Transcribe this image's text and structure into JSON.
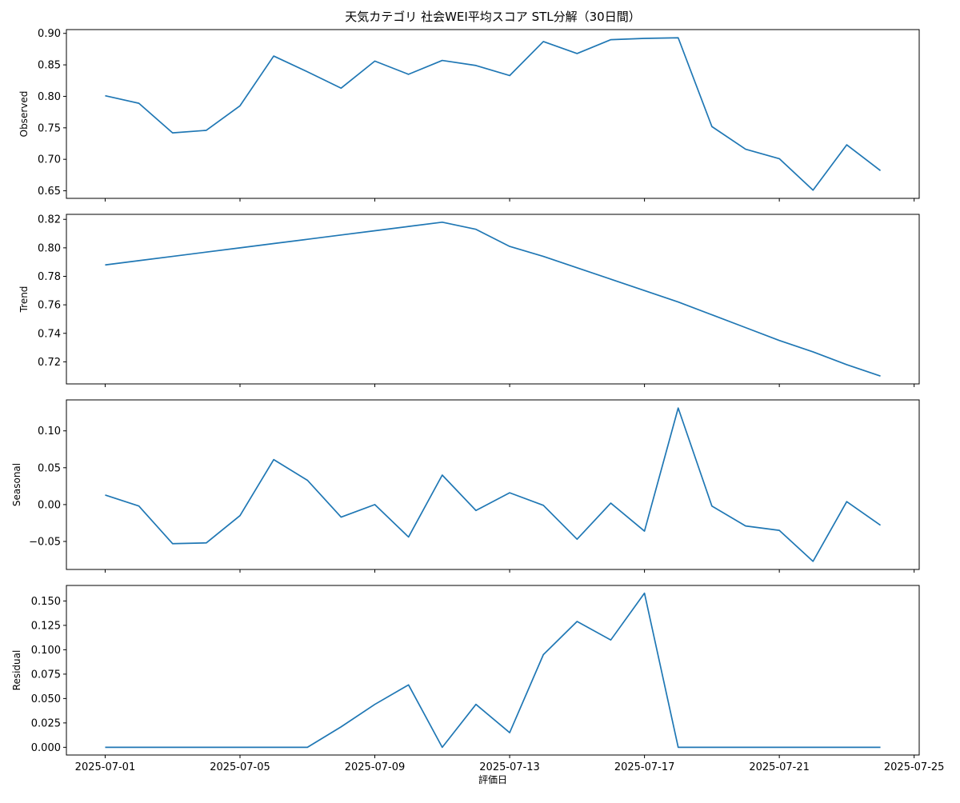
{
  "chart_data": {
    "type": "line",
    "title": "天気カテゴリ 社会WEI平均スコア STL分解（30日間）",
    "xlabel": "評価日",
    "x_tick_labels": [
      "2025-07-01",
      "2025-07-05",
      "2025-07-09",
      "2025-07-13",
      "2025-07-17",
      "2025-07-21",
      "2025-07-25"
    ],
    "x": [
      "2025-07-01",
      "2025-07-02",
      "2025-07-03",
      "2025-07-04",
      "2025-07-05",
      "2025-07-06",
      "2025-07-07",
      "2025-07-08",
      "2025-07-09",
      "2025-07-10",
      "2025-07-11",
      "2025-07-12",
      "2025-07-13",
      "2025-07-14",
      "2025-07-15",
      "2025-07-16",
      "2025-07-17",
      "2025-07-18",
      "2025-07-19",
      "2025-07-20",
      "2025-07-21",
      "2025-07-22",
      "2025-07-23",
      "2025-07-24"
    ],
    "series_color": "#1f77b4",
    "grid": false,
    "panels": [
      {
        "ylabel": "Observed",
        "y_tick_labels": [
          "0.65",
          "0.70",
          "0.75",
          "0.80",
          "0.85",
          "0.90"
        ],
        "values": [
          0.801,
          0.789,
          0.742,
          0.746,
          0.785,
          0.864,
          0.839,
          0.813,
          0.856,
          0.835,
          0.857,
          0.849,
          0.833,
          0.887,
          0.868,
          0.89,
          0.892,
          0.893,
          0.752,
          0.716,
          0.701,
          0.651,
          0.723,
          0.682
        ]
      },
      {
        "ylabel": "Trend",
        "y_tick_labels": [
          "0.72",
          "0.74",
          "0.76",
          "0.78",
          "0.80",
          "0.82"
        ],
        "values": [
          0.788,
          0.791,
          0.794,
          0.797,
          0.8,
          0.803,
          0.806,
          0.809,
          0.812,
          0.815,
          0.818,
          0.813,
          0.801,
          0.794,
          0.786,
          0.778,
          0.77,
          0.762,
          0.753,
          0.744,
          0.735,
          0.727,
          0.718,
          0.71
        ]
      },
      {
        "ylabel": "Seasonal",
        "y_tick_labels": [
          "−0.05",
          "0.00",
          "0.05",
          "0.10"
        ],
        "values": [
          0.013,
          -0.002,
          -0.053,
          -0.052,
          -0.015,
          0.061,
          0.033,
          -0.017,
          0.0,
          -0.044,
          0.04,
          -0.008,
          0.016,
          -0.001,
          -0.047,
          0.002,
          -0.036,
          0.131,
          -0.002,
          -0.029,
          -0.035,
          -0.077,
          0.004,
          -0.028
        ]
      },
      {
        "ylabel": "Residual",
        "y_tick_labels": [
          "0.000",
          "0.025",
          "0.050",
          "0.075",
          "0.100",
          "0.125",
          "0.150"
        ],
        "values": [
          0.0,
          0.0,
          0.0,
          0.0,
          0.0,
          0.0,
          0.0,
          0.021,
          0.044,
          0.064,
          0.0,
          0.044,
          0.015,
          0.095,
          0.129,
          0.11,
          0.158,
          0.0,
          0.0,
          0.0,
          0.0,
          0.0,
          0.0,
          0.0
        ]
      }
    ]
  }
}
